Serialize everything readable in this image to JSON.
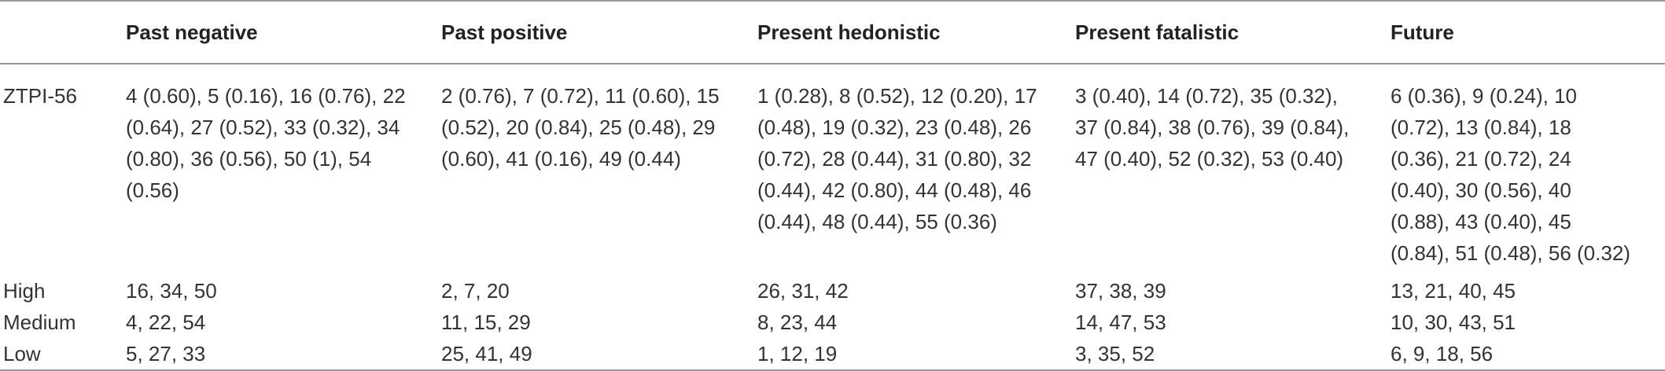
{
  "table": {
    "header": [
      "",
      "Past negative",
      "Past positive",
      "Present hedonistic",
      "Present fatalistic",
      "Future"
    ],
    "rows": [
      [
        "ZTPI-56",
        "4 (0.60), 5 (0.16), 16 (0.76), 22 (0.64), 27 (0.52), 33 (0.32), 34 (0.80), 36 (0.56), 50 (1), 54 (0.56)",
        "2 (0.76), 7 (0.72), 11 (0.60), 15 (0.52), 20 (0.84), 25 (0.48), 29 (0.60), 41 (0.16), 49 (0.44)",
        "1 (0.28), 8 (0.52), 12 (0.20), 17 (0.48), 19 (0.32), 23 (0.48), 26 (0.72), 28 (0.44), 31 (0.80), 32 (0.44), 42 (0.80), 44 (0.48), 46 (0.44), 48 (0.44), 55 (0.36)",
        "3 (0.40), 14 (0.72), 35 (0.32), 37 (0.84), 38 (0.76), 39 (0.84), 47 (0.40), 52 (0.32), 53 (0.40)",
        "6 (0.36), 9 (0.24), 10 (0.72), 13 (0.84), 18 (0.36), 21 (0.72), 24 (0.40), 30 (0.56), 40 (0.88), 43 (0.40), 45 (0.84), 51 (0.48), 56 (0.32)"
      ],
      [
        "High",
        "16, 34, 50",
        "2, 7, 20",
        "26, 31, 42",
        "37, 38, 39",
        "13, 21, 40, 45"
      ],
      [
        "Medium",
        "4, 22, 54",
        "11, 15, 29",
        "8, 23, 44",
        "14, 47, 53",
        "10, 30, 43, 51"
      ],
      [
        "Low",
        "5, 27, 33",
        "25, 41, 49",
        "1, 12, 19",
        "3, 35, 52",
        "6, 9, 18, 56"
      ]
    ]
  }
}
